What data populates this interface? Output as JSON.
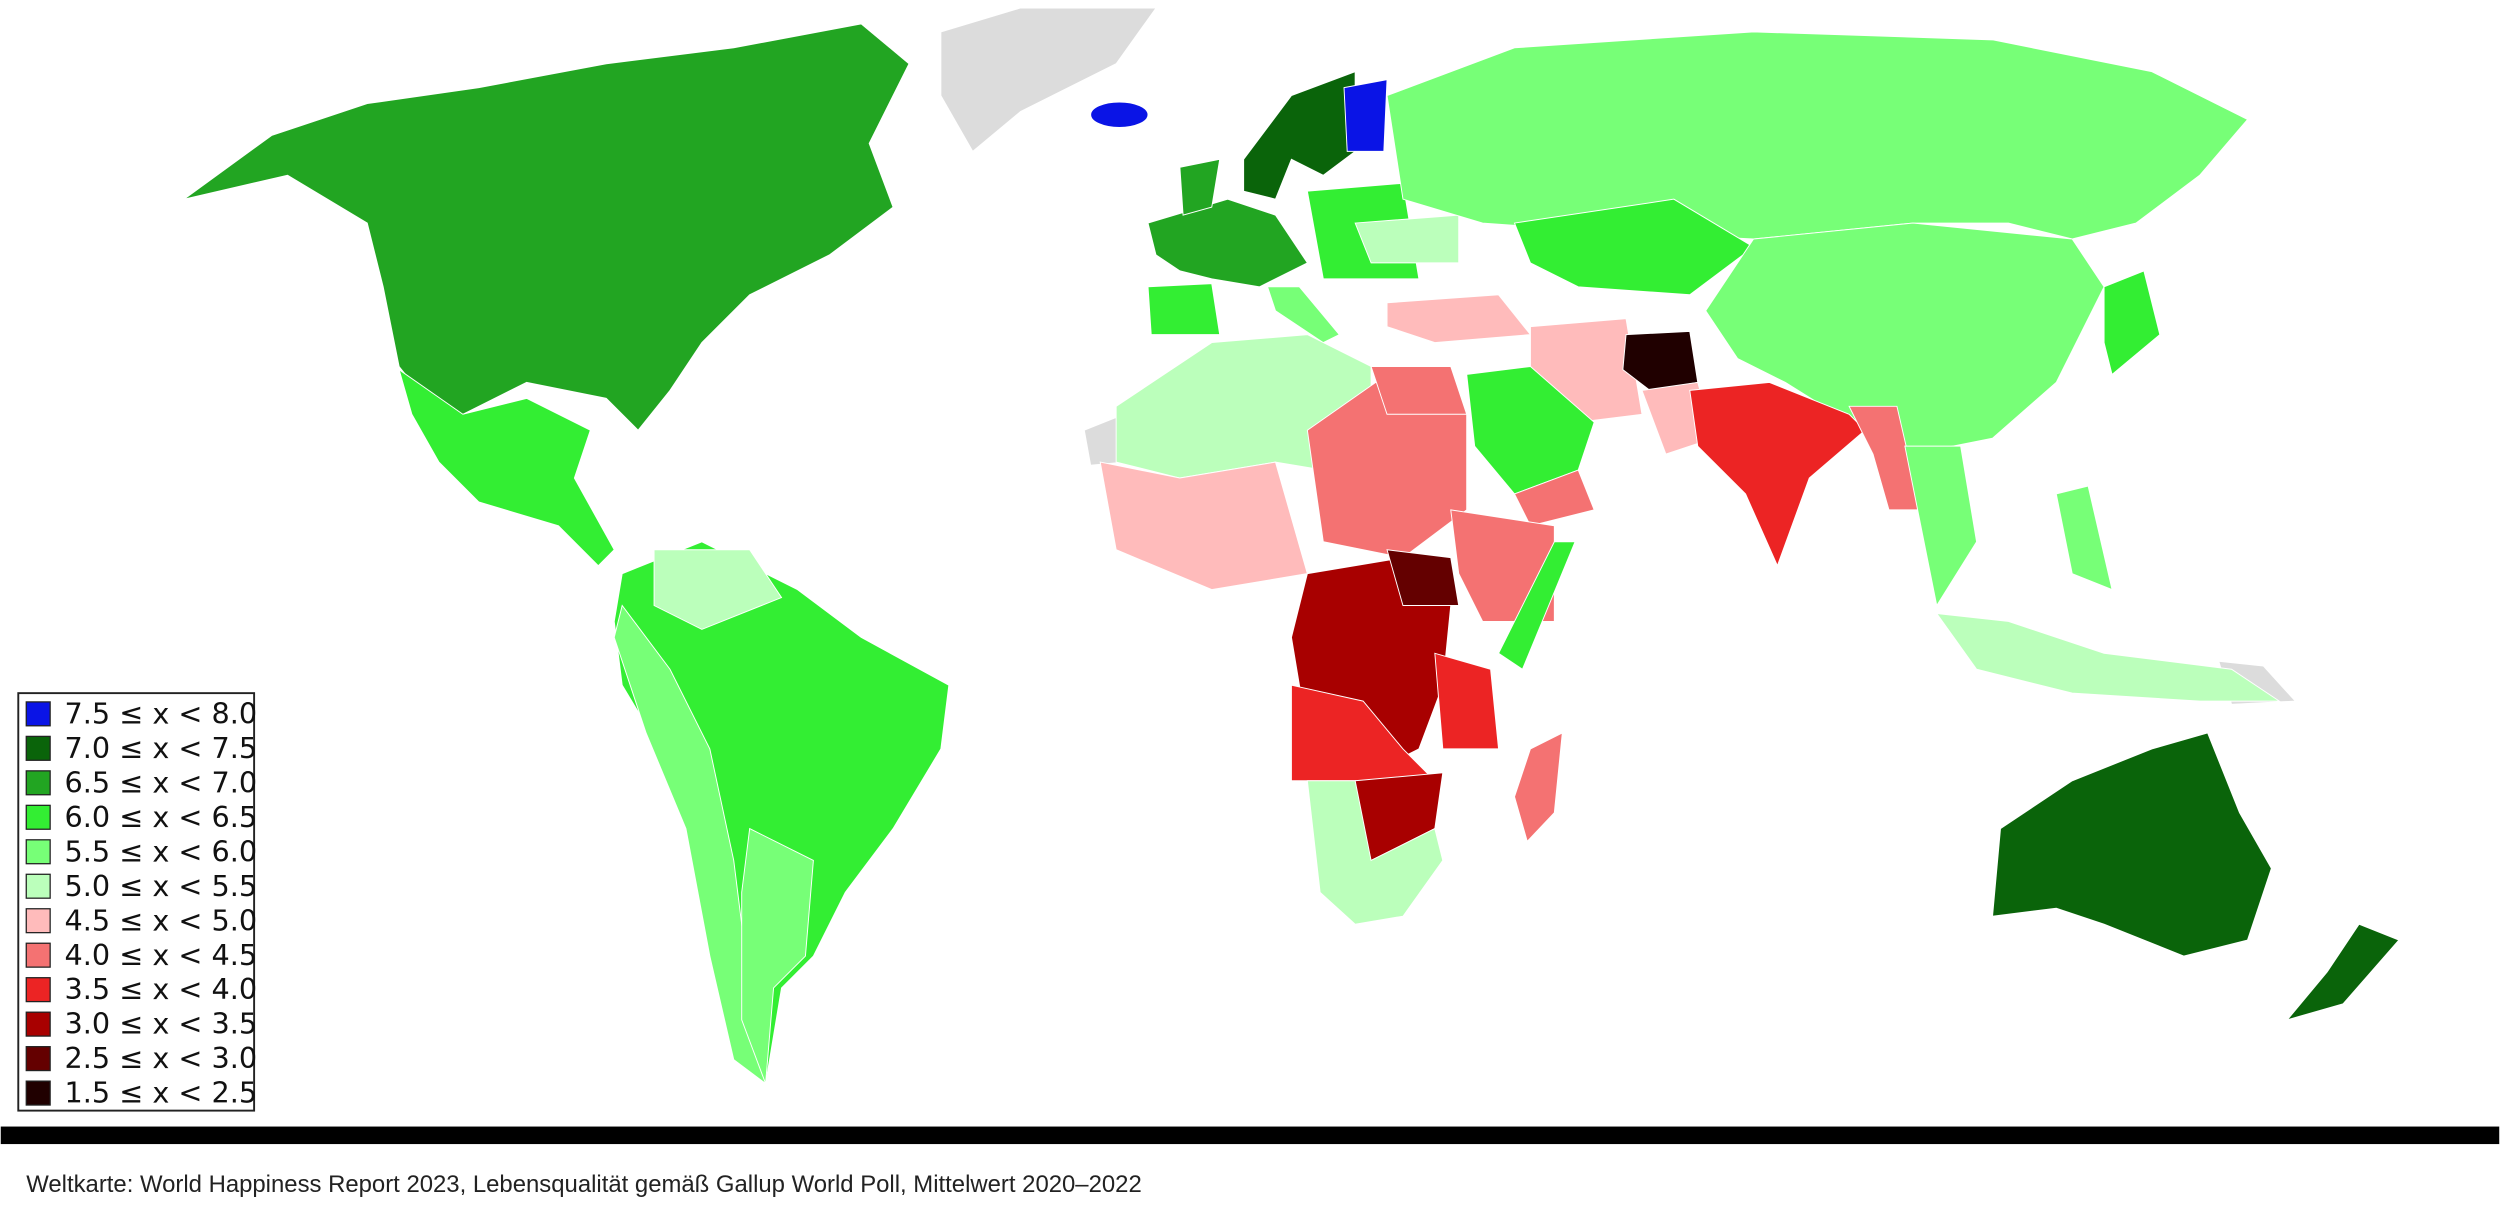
{
  "map": {
    "legend": [
      {
        "label": "7.5 ≤ x < 8.0",
        "color": "#0a14e6"
      },
      {
        "label": "7.0 ≤ x < 7.5",
        "color": "#0a640a"
      },
      {
        "label": "6.5 ≤ x < 7.0",
        "color": "#22a522"
      },
      {
        "label": "6.0 ≤ x < 6.5",
        "color": "#33ee33"
      },
      {
        "label": "5.5 ≤ x < 6.0",
        "color": "#77ff77"
      },
      {
        "label": "5.0 ≤ x < 5.5",
        "color": "#bbffbb"
      },
      {
        "label": "4.5 ≤ x < 5.0",
        "color": "#ffbbbb"
      },
      {
        "label": "4.0 ≤ x < 4.5",
        "color": "#f47272"
      },
      {
        "label": "3.5 ≤ x < 4.0",
        "color": "#ec2424"
      },
      {
        "label": "3.0 ≤ x < 3.5",
        "color": "#a80000"
      },
      {
        "label": "2.5 ≤ x < 3.0",
        "color": "#640000"
      },
      {
        "label": "1.5 ≤ x < 2.5",
        "color": "#200000"
      }
    ]
  },
  "caption": "Weltkarte: World Happiness Report 2023, Lebensqualität gemäß Gallup World Poll, Mittelwert 2020–2022"
}
